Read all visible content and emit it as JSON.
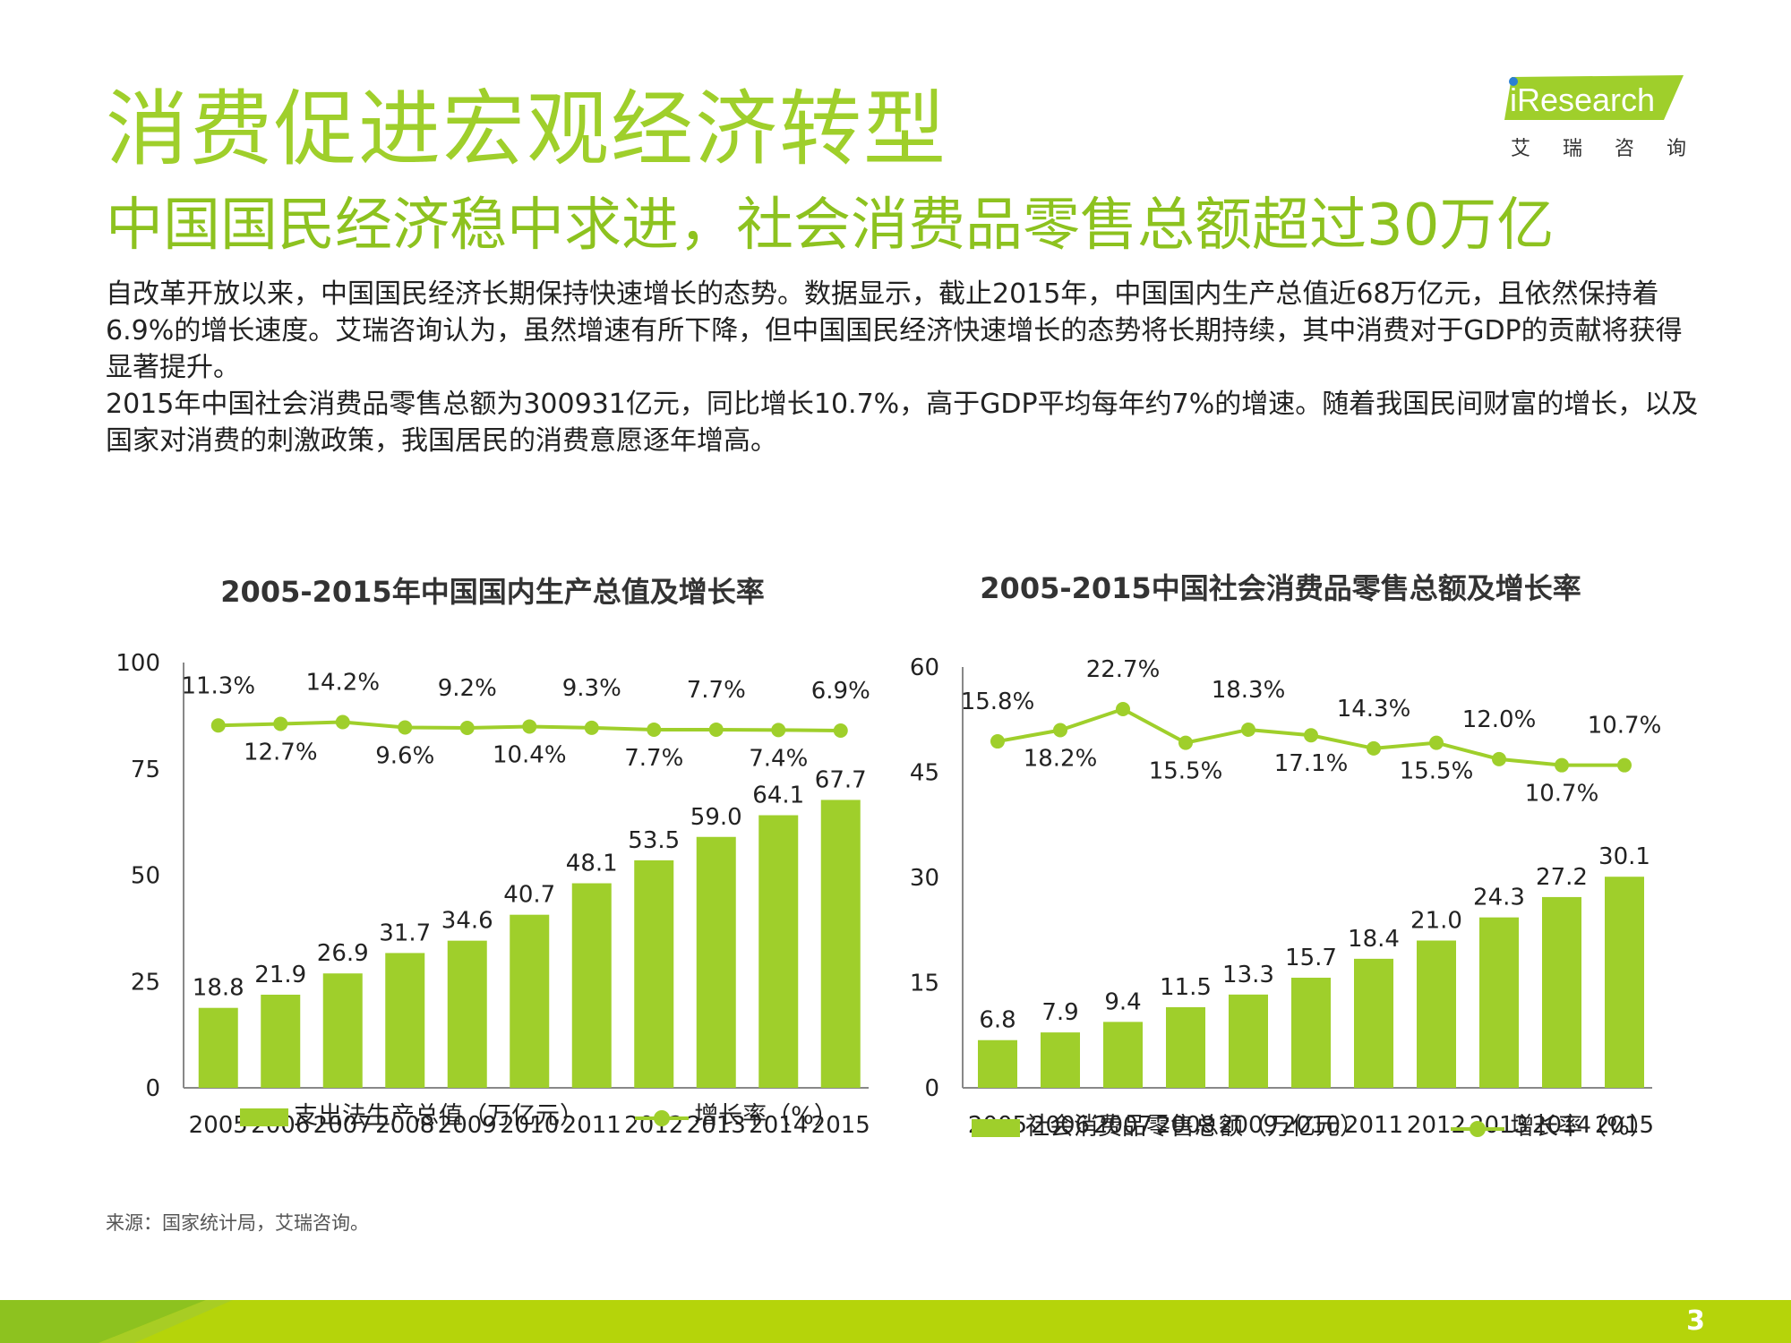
{
  "header": {
    "title": "消费促进宏观经济转型",
    "subtitle": "中国国民经济稳中求进，社会消费品零售总额超过30万亿"
  },
  "logo": {
    "brand": "iResearch",
    "sub": "艾瑞咨询"
  },
  "body": {
    "lines": [
      "自改革开放以来，中国国民经济长期保持快速增长的态势。数据显示，截止2015年，中国国内生产总值近68万亿元，且依然保持着6.9%的增长速度。艾瑞咨询认为，虽然增速有所下降，但中国国民经济快速增长的态势将长期持续，其中消费对于GDP的贡献将获得显著提升。",
      "2015年中国社会消费品零售总额为300931亿元，同比增长10.7%，高于GDP平均每年约7%的增速。随着我国民间财富的增长，以及国家对消费的刺激政策，我国居民的消费意愿逐年增高。"
    ]
  },
  "colors": {
    "accent": "#9fcf2b",
    "bar": "#9fcf2b",
    "line": "#9fcf2b",
    "footer": "#b5d40a"
  },
  "chart_data": [
    {
      "type": "bar",
      "title": "2005-2015年中国国内生产总值及增长率",
      "categories": [
        "2005",
        "2006",
        "2007",
        "2008",
        "2009",
        "2010",
        "2011",
        "2012",
        "2013",
        "2014",
        "2015"
      ],
      "ylim": [
        0,
        100
      ],
      "yticks": [
        "0",
        "25",
        "50",
        "75",
        "100"
      ],
      "line_level": 85,
      "series": [
        {
          "name": "支出法生产总值（万亿元）",
          "kind": "bar",
          "values": [
            18.8,
            21.9,
            26.9,
            31.7,
            34.6,
            40.7,
            48.1,
            53.5,
            59.0,
            64.1,
            67.7
          ],
          "labels": [
            "18.8",
            "21.9",
            "26.9",
            "31.7",
            "34.6",
            "40.7",
            "48.1",
            "53.5",
            "59.0",
            "64.1",
            "67.7"
          ]
        },
        {
          "name": "增长率（%）",
          "kind": "line",
          "values": [
            11.3,
            12.7,
            14.2,
            9.6,
            9.2,
            10.4,
            9.3,
            7.7,
            7.7,
            7.4,
            6.9
          ],
          "labels": [
            "11.3%",
            "12.7%",
            "14.2%",
            "9.6%",
            "9.2%",
            "10.4%",
            "9.3%",
            "7.7%",
            "7.7%",
            "7.4%",
            "6.9%"
          ]
        }
      ]
    },
    {
      "type": "bar",
      "title": "2005-2015中国社会消费品零售总额及增长率",
      "categories": [
        "2005",
        "2006",
        "2007",
        "2008",
        "2009",
        "2010",
        "2011",
        "2012",
        "2013",
        "2014",
        "2015"
      ],
      "ylim": [
        0,
        60
      ],
      "yticks": [
        "0",
        "15",
        "30",
        "45",
        "60"
      ],
      "line_level": 50,
      "series": [
        {
          "name": "社会消费品零售总额（万亿元）",
          "kind": "bar",
          "values": [
            6.8,
            7.9,
            9.4,
            11.5,
            13.3,
            15.7,
            18.4,
            21.0,
            24.3,
            27.2,
            30.1
          ],
          "labels": [
            "6.8",
            "7.9",
            "9.4",
            "11.5",
            "13.3",
            "15.7",
            "18.4",
            "21.0",
            "24.3",
            "27.2",
            "30.1"
          ]
        },
        {
          "name": "增长率（%）",
          "kind": "line",
          "values": [
            15.8,
            18.2,
            22.7,
            15.5,
            18.3,
            17.1,
            14.3,
            15.5,
            12.0,
            10.7,
            10.7
          ],
          "labels": [
            "15.8%",
            "18.2%",
            "22.7%",
            "15.5%",
            "18.3%",
            "17.1%",
            "14.3%",
            "15.5%",
            "12.0%",
            "10.7%",
            "10.7%"
          ]
        }
      ]
    }
  ],
  "source": "来源：国家统计局，艾瑞咨询。",
  "page_number": "3"
}
